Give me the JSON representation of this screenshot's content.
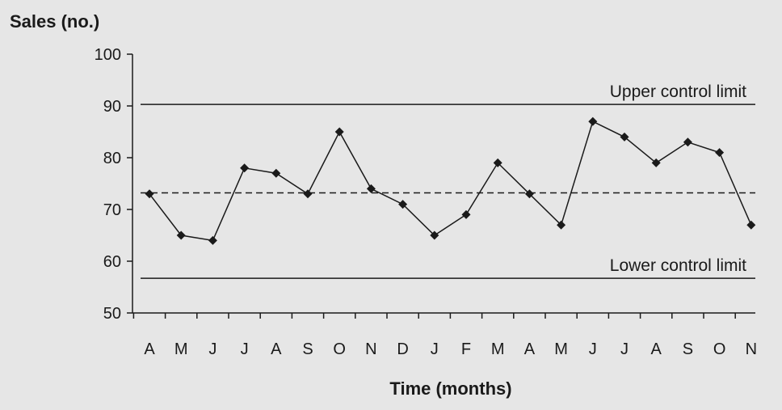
{
  "chart_data": {
    "type": "line",
    "xlabel": "Time (months)",
    "ylabel": "Sales (no.)",
    "ylim": [
      50,
      100
    ],
    "yticks": [
      50,
      60,
      70,
      80,
      90,
      100
    ],
    "categories": [
      "A",
      "M",
      "J",
      "J",
      "A",
      "S",
      "O",
      "N",
      "D",
      "J",
      "F",
      "M",
      "A",
      "M",
      "J",
      "J",
      "A",
      "S",
      "O",
      "N"
    ],
    "series": [
      {
        "values": [
          73,
          65,
          64,
          78,
          77,
          73,
          85,
          74,
          71,
          65,
          69,
          79,
          73,
          67,
          87,
          84,
          79,
          83,
          81,
          67
        ]
      }
    ],
    "reference_lines": [
      {
        "label": "Upper control limit",
        "value": 90.3,
        "style": "solid"
      },
      {
        "label": "",
        "value": 73.2,
        "style": "dashed"
      },
      {
        "label": "Lower control limit",
        "value": 56.7,
        "style": "solid"
      }
    ],
    "marker": "diamond",
    "line_color": "#1a1a1a",
    "grid": false
  }
}
